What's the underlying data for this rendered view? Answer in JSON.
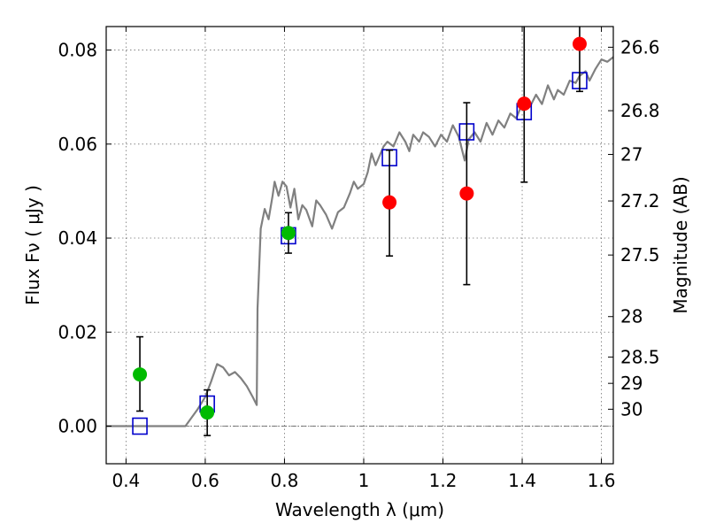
{
  "chart_data": {
    "type": "scatter",
    "xlabel": "Wavelength  λ (μm)",
    "ylabel": "Flux  Fν  ( μJy )",
    "y2label": "Magnitude (AB)",
    "xlim": [
      0.35,
      1.63
    ],
    "ylim": [
      -0.008,
      0.085
    ],
    "x_ticks": [
      0.4,
      0.6,
      0.8,
      1.0,
      1.2,
      1.4,
      1.6
    ],
    "x_tick_labels": [
      "0.4",
      "0.6",
      "0.8",
      "1",
      "1.2",
      "1.4",
      "1.6"
    ],
    "y_ticks": [
      0.0,
      0.02,
      0.04,
      0.06,
      0.08
    ],
    "y_tick_labels": [
      "0.00",
      "0.02",
      "0.04",
      "0.06",
      "0.08"
    ],
    "y2_ticks": [
      {
        "label": "26.6",
        "flux": 0.0806
      },
      {
        "label": "26.8",
        "flux": 0.0671
      },
      {
        "label": "27",
        "flux": 0.0578
      },
      {
        "label": "27.2",
        "flux": 0.0479
      },
      {
        "label": "27.5",
        "flux": 0.0364
      },
      {
        "label": "28",
        "flux": 0.0233
      },
      {
        "label": "28.5",
        "flux": 0.0147
      },
      {
        "label": "29",
        "flux": 0.0091
      },
      {
        "label": "30",
        "flux": 0.0036
      }
    ],
    "grid": true,
    "colors": {
      "model": "#808080",
      "model_flux": "#0000cc",
      "red_points": "#ff0000",
      "green_points": "#00bb00",
      "errorbar": "#000000",
      "zero_line": "#555555"
    },
    "series": [
      {
        "kind": "line",
        "points": [
          [
            0.35,
            0.0
          ],
          [
            0.55,
            0.0
          ],
          [
            0.58,
            0.0035
          ],
          [
            0.6,
            0.0062
          ],
          [
            0.615,
            0.0095
          ],
          [
            0.63,
            0.0132
          ],
          [
            0.645,
            0.0125
          ],
          [
            0.66,
            0.0108
          ],
          [
            0.675,
            0.0115
          ],
          [
            0.69,
            0.0102
          ],
          [
            0.705,
            0.0085
          ],
          [
            0.72,
            0.0062
          ],
          [
            0.73,
            0.0045
          ],
          [
            0.732,
            0.025
          ],
          [
            0.74,
            0.042
          ],
          [
            0.75,
            0.0462
          ],
          [
            0.76,
            0.044
          ],
          [
            0.77,
            0.049
          ],
          [
            0.775,
            0.052
          ],
          [
            0.785,
            0.049
          ],
          [
            0.795,
            0.052
          ],
          [
            0.805,
            0.051
          ],
          [
            0.815,
            0.0465
          ],
          [
            0.825,
            0.0505
          ],
          [
            0.835,
            0.044
          ],
          [
            0.845,
            0.047
          ],
          [
            0.855,
            0.046
          ],
          [
            0.87,
            0.0425
          ],
          [
            0.88,
            0.048
          ],
          [
            0.89,
            0.047
          ],
          [
            0.905,
            0.045
          ],
          [
            0.92,
            0.042
          ],
          [
            0.935,
            0.0455
          ],
          [
            0.95,
            0.0465
          ],
          [
            0.965,
            0.0495
          ],
          [
            0.975,
            0.052
          ],
          [
            0.985,
            0.0505
          ],
          [
            1.0,
            0.0515
          ],
          [
            1.01,
            0.054
          ],
          [
            1.02,
            0.058
          ],
          [
            1.03,
            0.0555
          ],
          [
            1.05,
            0.0595
          ],
          [
            1.06,
            0.0605
          ],
          [
            1.075,
            0.0595
          ],
          [
            1.09,
            0.0625
          ],
          [
            1.105,
            0.0605
          ],
          [
            1.115,
            0.0585
          ],
          [
            1.125,
            0.062
          ],
          [
            1.14,
            0.0605
          ],
          [
            1.15,
            0.0625
          ],
          [
            1.165,
            0.0615
          ],
          [
            1.18,
            0.0595
          ],
          [
            1.195,
            0.062
          ],
          [
            1.21,
            0.0605
          ],
          [
            1.225,
            0.064
          ],
          [
            1.24,
            0.0615
          ],
          [
            1.255,
            0.0565
          ],
          [
            1.265,
            0.061
          ],
          [
            1.28,
            0.0625
          ],
          [
            1.295,
            0.0605
          ],
          [
            1.31,
            0.0645
          ],
          [
            1.325,
            0.062
          ],
          [
            1.34,
            0.065
          ],
          [
            1.355,
            0.0635
          ],
          [
            1.37,
            0.0665
          ],
          [
            1.385,
            0.0655
          ],
          [
            1.4,
            0.0685
          ],
          [
            1.41,
            0.069
          ],
          [
            1.42,
            0.068
          ],
          [
            1.435,
            0.0705
          ],
          [
            1.45,
            0.0685
          ],
          [
            1.465,
            0.0725
          ],
          [
            1.48,
            0.0695
          ],
          [
            1.49,
            0.0715
          ],
          [
            1.505,
            0.0705
          ],
          [
            1.52,
            0.0735
          ],
          [
            1.535,
            0.073
          ],
          [
            1.545,
            0.0745
          ],
          [
            1.56,
            0.0755
          ],
          [
            1.57,
            0.0735
          ],
          [
            1.585,
            0.076
          ],
          [
            1.6,
            0.078
          ],
          [
            1.615,
            0.0775
          ],
          [
            1.63,
            0.0785
          ]
        ]
      },
      {
        "kind": "squares",
        "points": [
          [
            0.435,
            0.0
          ],
          [
            0.605,
            0.0047
          ],
          [
            0.81,
            0.0405
          ],
          [
            1.065,
            0.0571
          ],
          [
            1.26,
            0.0626
          ],
          [
            1.405,
            0.0669
          ],
          [
            1.545,
            0.0735
          ]
        ]
      },
      {
        "kind": "circles-green",
        "points": [
          [
            0.435,
            0.011,
            0.0032,
            0.019
          ],
          [
            0.605,
            0.0029,
            -0.002,
            0.0077
          ],
          [
            0.81,
            0.0411,
            0.0368,
            0.0454
          ]
        ]
      },
      {
        "kind": "circles-red",
        "points": [
          [
            1.065,
            0.0476,
            0.0362,
            0.0587
          ],
          [
            1.26,
            0.0495,
            0.0301,
            0.0688
          ],
          [
            1.405,
            0.0686,
            0.0519,
            0.0853
          ],
          [
            1.545,
            0.0813,
            0.0712,
            0.0853
          ]
        ]
      }
    ]
  }
}
